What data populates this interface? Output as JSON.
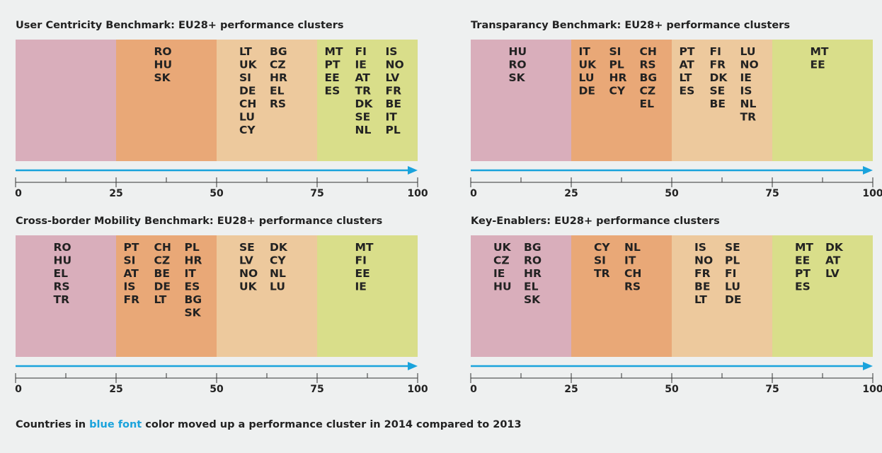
{
  "panels": [
    {
      "title": "User Centricity Benchmark: EU28+ performance clusters",
      "ticks": [
        0,
        25,
        50,
        75,
        100
      ],
      "clusters": [
        [],
        [
          [
            {
              "code": "RO"
            },
            {
              "code": "HU"
            },
            {
              "code": "SK"
            }
          ]
        ],
        [
          [
            {
              "code": "LT"
            },
            {
              "code": "UK"
            },
            {
              "code": "SI"
            },
            {
              "code": "DE"
            },
            {
              "code": "CH"
            },
            {
              "code": "LU"
            },
            {
              "code": "CY"
            }
          ],
          [
            {
              "code": "BG"
            },
            {
              "code": "CZ"
            },
            {
              "code": "HR"
            },
            {
              "code": "EL",
              "moved": true
            },
            {
              "code": "RS"
            }
          ]
        ],
        [
          [
            {
              "code": "MT"
            },
            {
              "code": "PT"
            },
            {
              "code": "EE"
            },
            {
              "code": "ES"
            }
          ],
          [
            {
              "code": "FI"
            },
            {
              "code": "IE"
            },
            {
              "code": "AT"
            },
            {
              "code": "TR"
            },
            {
              "code": "DK"
            },
            {
              "code": "SE"
            },
            {
              "code": "NL"
            }
          ],
          [
            {
              "code": "IS"
            },
            {
              "code": "NO"
            },
            {
              "code": "LV",
              "moved": true
            },
            {
              "code": "FR",
              "moved": true
            },
            {
              "code": "BE",
              "moved": true
            },
            {
              "code": "IT",
              "moved": true
            },
            {
              "code": "PL",
              "moved": true
            }
          ]
        ]
      ]
    },
    {
      "title": "Transparancy Benchmark: EU28+ performance clusters",
      "ticks": [
        0,
        25,
        50,
        75,
        100
      ],
      "clusters": [
        [
          [
            {
              "code": "HU"
            },
            {
              "code": "RO"
            },
            {
              "code": "SK"
            }
          ]
        ],
        [
          [
            {
              "code": "IT"
            },
            {
              "code": "UK"
            },
            {
              "code": "LU"
            },
            {
              "code": "DE"
            }
          ],
          [
            {
              "code": "SI"
            },
            {
              "code": "PL"
            },
            {
              "code": "HR"
            },
            {
              "code": "CY"
            }
          ],
          [
            {
              "code": "CH"
            },
            {
              "code": "RS"
            },
            {
              "code": "BG"
            },
            {
              "code": "CZ"
            },
            {
              "code": "EL",
              "moved": true
            }
          ]
        ],
        [
          [
            {
              "code": "PT"
            },
            {
              "code": "AT"
            },
            {
              "code": "LT"
            },
            {
              "code": "ES"
            }
          ],
          [
            {
              "code": "FI"
            },
            {
              "code": "FR"
            },
            {
              "code": "DK"
            },
            {
              "code": "SE"
            },
            {
              "code": "BE"
            }
          ],
          [
            {
              "code": "LU"
            },
            {
              "code": "NO"
            },
            {
              "code": "IE",
              "moved": true
            },
            {
              "code": "IS",
              "moved": true
            },
            {
              "code": "NL"
            },
            {
              "code": "TR"
            }
          ]
        ],
        [
          [
            {
              "code": "MT"
            },
            {
              "code": "EE",
              "moved": true
            }
          ]
        ]
      ]
    },
    {
      "title": "Cross-border Mobility Benchmark: EU28+ performance clusters",
      "ticks": [
        0,
        25,
        50,
        75,
        100
      ],
      "clusters": [
        [
          [
            {
              "code": "RO"
            },
            {
              "code": "HU"
            },
            {
              "code": "EL"
            },
            {
              "code": "RS"
            },
            {
              "code": "TR"
            }
          ]
        ],
        [
          [
            {
              "code": "PT"
            },
            {
              "code": "SI"
            },
            {
              "code": "AT"
            },
            {
              "code": "IS"
            },
            {
              "code": "FR"
            }
          ],
          [
            {
              "code": "CH"
            },
            {
              "code": "CZ"
            },
            {
              "code": "BE"
            },
            {
              "code": "DE"
            },
            {
              "code": "LT"
            }
          ],
          [
            {
              "code": "PL"
            },
            {
              "code": "HR"
            },
            {
              "code": "IT"
            },
            {
              "code": "ES"
            },
            {
              "code": "BG"
            },
            {
              "code": "SK"
            }
          ]
        ],
        [
          [
            {
              "code": "SE"
            },
            {
              "code": "LV"
            },
            {
              "code": "NO"
            },
            {
              "code": "UK"
            }
          ],
          [
            {
              "code": "DK"
            },
            {
              "code": "CY"
            },
            {
              "code": "NL"
            },
            {
              "code": "LU",
              "moved": true
            }
          ]
        ],
        [
          [
            {
              "code": "MT"
            },
            {
              "code": "FI"
            },
            {
              "code": "EE"
            },
            {
              "code": "IE",
              "moved": true
            }
          ]
        ]
      ]
    },
    {
      "title": "Key-Enablers: EU28+ performance clusters",
      "ticks": [
        0,
        25,
        50,
        75,
        100
      ],
      "clusters": [
        [
          [
            {
              "code": "UK"
            },
            {
              "code": "CZ"
            },
            {
              "code": "IE"
            },
            {
              "code": "HU"
            }
          ],
          [
            {
              "code": "BG"
            },
            {
              "code": "RO"
            },
            {
              "code": "HR"
            },
            {
              "code": "EL"
            },
            {
              "code": "SK"
            }
          ]
        ],
        [
          [
            {
              "code": "CY"
            },
            {
              "code": "SI"
            },
            {
              "code": "TR"
            }
          ],
          [
            {
              "code": "NL"
            },
            {
              "code": "IT"
            },
            {
              "code": "CH"
            },
            {
              "code": "RS"
            }
          ]
        ],
        [
          [
            {
              "code": "IS"
            },
            {
              "code": "NO"
            },
            {
              "code": "FR"
            },
            {
              "code": "BE"
            },
            {
              "code": "LT"
            }
          ],
          [
            {
              "code": "SE"
            },
            {
              "code": "PL"
            },
            {
              "code": "FI"
            },
            {
              "code": "LU",
              "moved": true
            },
            {
              "code": "DE",
              "moved": true
            }
          ]
        ],
        [
          [
            {
              "code": "MT"
            },
            {
              "code": "EE"
            },
            {
              "code": "PT"
            },
            {
              "code": "ES"
            }
          ],
          [
            {
              "code": "DK",
              "moved": true
            },
            {
              "code": "AT"
            },
            {
              "code": "LV",
              "moved": true
            }
          ]
        ]
      ]
    }
  ],
  "band_colors": [
    "#d9aebb",
    "#e9a877",
    "#edc99d",
    "#d9de8a"
  ],
  "moved_color": "#1aa3dc",
  "footer": [
    "Countries in ",
    "blue font",
    " color moved up a performance cluster in 2014 compared to 2013"
  ]
}
